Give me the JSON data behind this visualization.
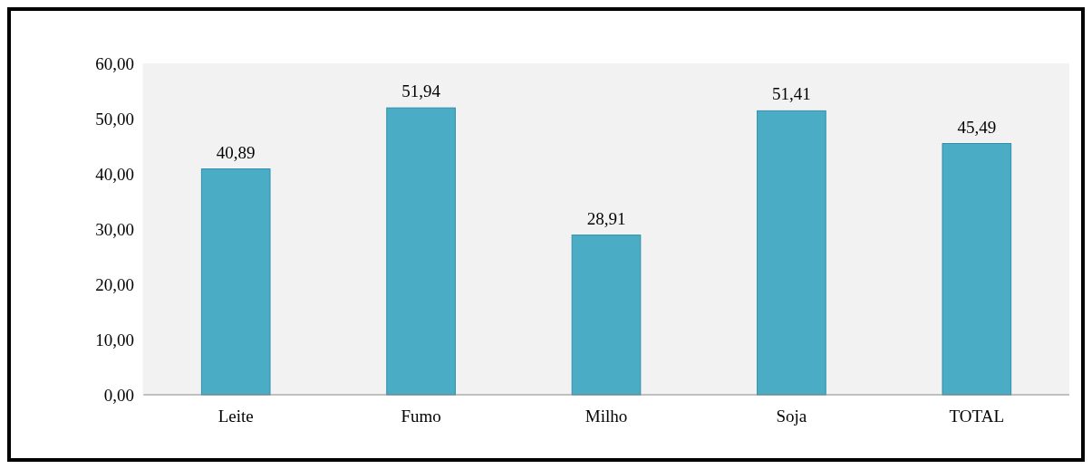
{
  "chart_data": {
    "type": "bar",
    "categories": [
      "Leite",
      "Fumo",
      "Milho",
      "Soja",
      "TOTAL"
    ],
    "values": [
      40.89,
      51.94,
      28.91,
      51.41,
      45.49
    ],
    "value_labels": [
      "40,89",
      "51,94",
      "28,91",
      "51,41",
      "45,49"
    ],
    "color": "#4bacc6",
    "ylim": [
      0,
      60
    ],
    "yticks": [
      {
        "value": 0,
        "label": "0,00"
      },
      {
        "value": 10,
        "label": "10,00"
      },
      {
        "value": 20,
        "label": "20,00"
      },
      {
        "value": 30,
        "label": "30,00"
      },
      {
        "value": 40,
        "label": "40,00"
      },
      {
        "value": 50,
        "label": "50,00"
      },
      {
        "value": 60,
        "label": "60,00"
      }
    ]
  }
}
